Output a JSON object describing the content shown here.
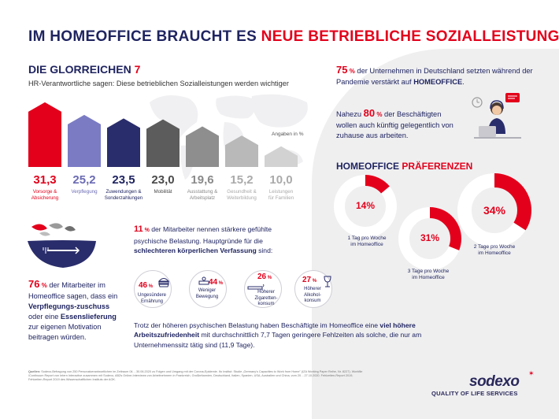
{
  "title": {
    "part1": "IM HOMEOFFICE BRAUCHT ES ",
    "part2": "NEUE BETRIEBLICHE SOZIALLEISTUNGEN"
  },
  "glorreichen": {
    "title": "DIE GLORREICHEN ",
    "title_num": "7",
    "subtitle": "HR-Verantwortliche sagen: Diese betrieblichen Sozialleistungen werden wichtiger",
    "unit_note": "Angaben in %"
  },
  "chart_data": {
    "type": "bar",
    "title": "DIE GLORREICHEN 7",
    "categories": [
      "Vorsorge & Absicherung",
      "Verpflegung",
      "Zuwendungen & Sonderzahlungen",
      "Mobilität",
      "Ausstattung & Arbeitsplatz",
      "Gesundheit & Weiterbildung",
      "Leistungen für Familien"
    ],
    "values": [
      31.3,
      25.2,
      23.5,
      23.0,
      19.6,
      15.2,
      10.0
    ],
    "value_labels": [
      "31,3",
      "25,2",
      "23,5",
      "23,0",
      "19,6",
      "15,2",
      "10,0"
    ],
    "labels_lines": [
      [
        "Vorsorge &",
        "Absicherung"
      ],
      [
        "Verpflegung"
      ],
      [
        "Zuwendungen &",
        "Sonderzahlungen"
      ],
      [
        "Mobilität"
      ],
      [
        "Ausstattung &",
        "Arbeitsplatz"
      ],
      [
        "Gesundheit &",
        "Weiterbildung"
      ],
      [
        "Leistungen",
        "für Familien"
      ]
    ],
    "colors": [
      "#e3001b",
      "#7b7bc4",
      "#2a2d6b",
      "#5c5c5c",
      "#8e8e8e",
      "#b9b9b9",
      "#d2d2d2"
    ],
    "ylabel": "Angaben in %",
    "ylim": [
      0,
      32
    ]
  },
  "right": {
    "p75_pct": "75",
    "p75_unit": " %",
    "p75_text_a": " der Unternehmen in Deutschland setzten während der Pandemie verstärkt auf ",
    "p75_bold": "HOMEOFFICE",
    "p75_end": ".",
    "p80_pre": "Nahezu ",
    "p80_pct": "80",
    "p80_unit": " %",
    "p80_text": " der Beschäftigten wollen auch künftig gelegentlich von zuhause aus arbeiten."
  },
  "praeferenzen": {
    "title_a": "HOMEOFFICE ",
    "title_b": "PRÄFERENZEN",
    "donuts": [
      {
        "pct_label": "14%",
        "value": 14,
        "label_lines": [
          "1 Tag pro Woche",
          "im Homeoffice"
        ]
      },
      {
        "pct_label": "31%",
        "value": 31,
        "label_lines": [
          "3 Tage pro Woche",
          "im Homeoffice"
        ]
      },
      {
        "pct_label": "34%",
        "value": 34,
        "label_lines": [
          "2 Tage pro Woche",
          "im Homeoffice"
        ]
      }
    ]
  },
  "mid": {
    "p11_pct": "11",
    "p11_unit": " %",
    "p11_text": " der Mitarbeiter nennen stärkere gefühlte psychische Belastung. Hauptgründe für die ",
    "p11_bold": "schlechteren körperlichen Verfassung",
    "p11_end": " sind:",
    "reasons": [
      {
        "pct": "46",
        "unit": " %",
        "line1": "Ungesündere",
        "line2": "Ernährung"
      },
      {
        "pct": "44",
        "unit": " %",
        "line1": "Weniger",
        "line2": "Bewegung"
      },
      {
        "pct": "26",
        "unit": " %",
        "line1": "Höherer",
        "line2": "Zigaretten-",
        "line3": "konsum"
      },
      {
        "pct": "27",
        "unit": " %",
        "line1": "Höherer",
        "line2": "Alkohol-",
        "line3": "konsum"
      }
    ],
    "trotz_a": "Trotz der höheren psychischen Belastung haben Beschäftigte im Homeoffice eine ",
    "trotz_bold": "viel höhere Arbeitszufriedenheit",
    "trotz_b": " mit durchschnittlich 7,7 Tagen geringere Fehlzeiten als solche, die nur am Unternehmenssitz tätig sind (11,9 Tage)."
  },
  "left_bottom": {
    "pct": "76",
    "unit": " %",
    "text_a": " der Mitarbeiter im Homeoffice sagen, dass ein ",
    "bold_a": "Verpflegungs-zuschuss",
    "text_b": " oder eine ",
    "bold_b": "Essenslieferung",
    "text_c": " zur eigenen Motivation beitragen würden."
  },
  "sources": {
    "label": "Quellen:",
    "text": " Sodexo-Befragung von 250 Personalverantwortlichen im Zeitraum 04. - 30.06.2020 zu Folgen und Umgang mit der Corona-Epidemie. Ifo Institut: Studie „Germany's Capacities to Work from Home\" (IZA Working Paper Reihe, Nr. 8227). Workfile /Continuum Report von Intern Interactive zusammen mit Sodexo, ABZs Online-Interviews von Arbeitnehmern in Frankreich, Großbritannien, Deutschland, Italien, Spanien, USA, Australien und China, vom 20. - 27.10.2020. Fehlzeiten-Report 2019, Fehlzeiten-Report 2019 des Wissenschaftlichen Instituts der AOK."
  },
  "brand": {
    "logo": "sodexo",
    "tagline": "QUALITY OF LIFE SERVICES"
  },
  "colors": {
    "red": "#e3001b",
    "navy": "#1f2460",
    "grey_bg": "#efeff0"
  }
}
